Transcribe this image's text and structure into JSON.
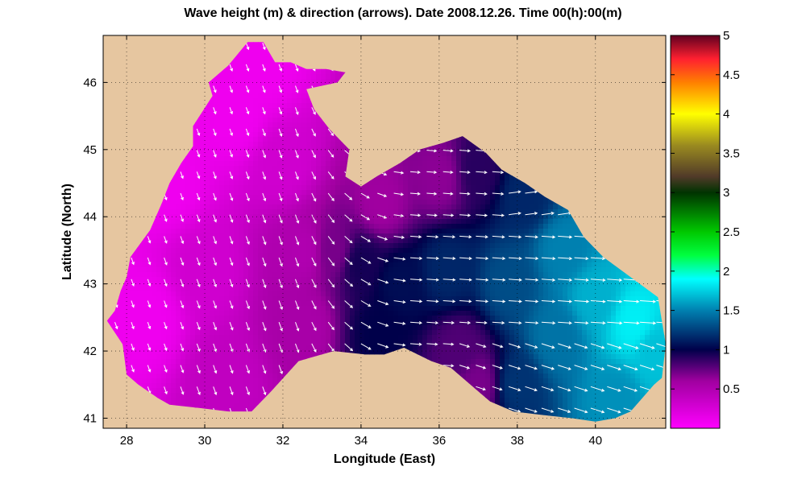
{
  "chart_data": {
    "type": "heatmap",
    "title": "Wave height (m) & direction (arrows). Date 2008.12.26. Time 00(h):00(m)",
    "xlabel": "Longitude (East)",
    "ylabel": "Latitude (North)",
    "xlim": [
      27.4,
      41.8
    ],
    "ylim": [
      40.85,
      46.7
    ],
    "x_ticks": [
      28,
      30,
      32,
      34,
      36,
      38,
      40
    ],
    "y_ticks": [
      41,
      42,
      43,
      44,
      45,
      46
    ],
    "grid": true,
    "colorbar": {
      "ticks": [
        "0.5",
        "1",
        "1.5",
        "2",
        "2.5",
        "3",
        "3.5",
        "4",
        "4.5",
        "5"
      ],
      "range": [
        0,
        5
      ],
      "colors": [
        {
          "v": 0.0,
          "c": "#ff00ff"
        },
        {
          "v": 0.6,
          "c": "#a000a0"
        },
        {
          "v": 1.0,
          "c": "#00004a"
        },
        {
          "v": 1.5,
          "c": "#0080b0"
        },
        {
          "v": 1.9,
          "c": "#00ffff"
        },
        {
          "v": 2.2,
          "c": "#00ff40"
        },
        {
          "v": 2.5,
          "c": "#00c800"
        },
        {
          "v": 3.0,
          "c": "#003300"
        },
        {
          "v": 3.2,
          "c": "#503a28"
        },
        {
          "v": 3.6,
          "c": "#9a8a20"
        },
        {
          "v": 4.0,
          "c": "#ffff00"
        },
        {
          "v": 4.4,
          "c": "#ff8000"
        },
        {
          "v": 4.7,
          "c": "#ff2030"
        },
        {
          "v": 5.0,
          "c": "#600020"
        }
      ]
    },
    "land_color": "#e6c6a0",
    "arrow_color": "#ffffff",
    "coastline": [
      [
        27.5,
        42.45
      ],
      [
        27.7,
        42.6
      ],
      [
        27.85,
        42.9
      ],
      [
        28.0,
        43.1
      ],
      [
        28.1,
        43.4
      ],
      [
        28.6,
        43.8
      ],
      [
        28.9,
        44.2
      ],
      [
        29.1,
        44.5
      ],
      [
        29.4,
        44.8
      ],
      [
        29.7,
        45.05
      ],
      [
        29.7,
        45.35
      ],
      [
        30.2,
        45.8
      ],
      [
        30.1,
        46.0
      ],
      [
        30.6,
        46.25
      ],
      [
        31.1,
        46.6
      ],
      [
        31.5,
        46.6
      ],
      [
        31.8,
        46.3
      ],
      [
        32.2,
        46.3
      ],
      [
        32.6,
        46.2
      ],
      [
        33.1,
        46.2
      ],
      [
        33.6,
        46.15
      ],
      [
        33.4,
        46.0
      ],
      [
        32.6,
        45.9
      ],
      [
        32.8,
        45.6
      ],
      [
        33.2,
        45.3
      ],
      [
        33.7,
        45.0
      ],
      [
        33.6,
        44.6
      ],
      [
        34.0,
        44.45
      ],
      [
        34.4,
        44.6
      ],
      [
        35.0,
        44.8
      ],
      [
        35.5,
        45.0
      ],
      [
        36.1,
        45.1
      ],
      [
        36.6,
        45.2
      ],
      [
        37.2,
        44.95
      ],
      [
        37.6,
        44.7
      ],
      [
        38.2,
        44.5
      ],
      [
        38.7,
        44.3
      ],
      [
        39.3,
        44.1
      ],
      [
        39.7,
        43.7
      ],
      [
        40.2,
        43.4
      ],
      [
        40.9,
        43.1
      ],
      [
        41.6,
        42.8
      ],
      [
        41.8,
        42.1
      ],
      [
        41.7,
        41.6
      ],
      [
        41.5,
        41.5
      ],
      [
        40.9,
        41.1
      ],
      [
        40.5,
        41.0
      ],
      [
        40.0,
        40.95
      ],
      [
        39.4,
        41.0
      ],
      [
        38.6,
        41.05
      ],
      [
        37.9,
        41.1
      ],
      [
        37.3,
        41.25
      ],
      [
        36.8,
        41.5
      ],
      [
        36.3,
        41.75
      ],
      [
        35.8,
        41.85
      ],
      [
        35.1,
        42.05
      ],
      [
        34.6,
        41.95
      ],
      [
        34.1,
        41.95
      ],
      [
        33.3,
        42.0
      ],
      [
        32.4,
        41.85
      ],
      [
        31.7,
        41.4
      ],
      [
        31.2,
        41.1
      ],
      [
        30.6,
        41.1
      ],
      [
        29.9,
        41.15
      ],
      [
        29.1,
        41.2
      ],
      [
        28.8,
        41.3
      ],
      [
        28.3,
        41.5
      ],
      [
        28.0,
        41.65
      ],
      [
        27.9,
        42.1
      ],
      [
        27.5,
        42.45
      ]
    ],
    "height_field": [
      {
        "lon": 28.5,
        "lat": 42.5,
        "v": 0.1
      },
      {
        "lon": 29.0,
        "lat": 44.5,
        "v": 0.1
      },
      {
        "lon": 30.8,
        "lat": 45.5,
        "v": 0.1
      },
      {
        "lon": 31.5,
        "lat": 46.2,
        "v": 0.1
      },
      {
        "lon": 30.0,
        "lat": 43.2,
        "v": 0.3
      },
      {
        "lon": 30.5,
        "lat": 41.6,
        "v": 0.4
      },
      {
        "lon": 32.0,
        "lat": 44.8,
        "v": 0.3
      },
      {
        "lon": 32.5,
        "lat": 42.4,
        "v": 0.55
      },
      {
        "lon": 32.5,
        "lat": 43.5,
        "v": 0.5
      },
      {
        "lon": 33.3,
        "lat": 43.5,
        "v": 0.7
      },
      {
        "lon": 34.0,
        "lat": 43.3,
        "v": 0.95
      },
      {
        "lon": 34.5,
        "lat": 44.2,
        "v": 0.6
      },
      {
        "lon": 35.0,
        "lat": 43.0,
        "v": 1.05
      },
      {
        "lon": 34.5,
        "lat": 42.3,
        "v": 1.0
      },
      {
        "lon": 36.0,
        "lat": 44.6,
        "v": 0.65
      },
      {
        "lon": 37.0,
        "lat": 44.7,
        "v": 0.9
      },
      {
        "lon": 36.2,
        "lat": 43.2,
        "v": 1.15
      },
      {
        "lon": 36.5,
        "lat": 42.0,
        "v": 0.8
      },
      {
        "lon": 37.0,
        "lat": 41.5,
        "v": 0.7
      },
      {
        "lon": 37.8,
        "lat": 43.0,
        "v": 1.3
      },
      {
        "lon": 38.2,
        "lat": 44.3,
        "v": 1.15
      },
      {
        "lon": 38.0,
        "lat": 41.5,
        "v": 1.2
      },
      {
        "lon": 39.0,
        "lat": 42.2,
        "v": 1.45
      },
      {
        "lon": 39.2,
        "lat": 43.5,
        "v": 1.5
      },
      {
        "lon": 40.0,
        "lat": 42.8,
        "v": 1.65
      },
      {
        "lon": 40.5,
        "lat": 41.3,
        "v": 1.55
      },
      {
        "lon": 41.0,
        "lat": 42.4,
        "v": 1.85
      },
      {
        "lon": 41.5,
        "lat": 42.0,
        "v": 1.7
      }
    ]
  }
}
